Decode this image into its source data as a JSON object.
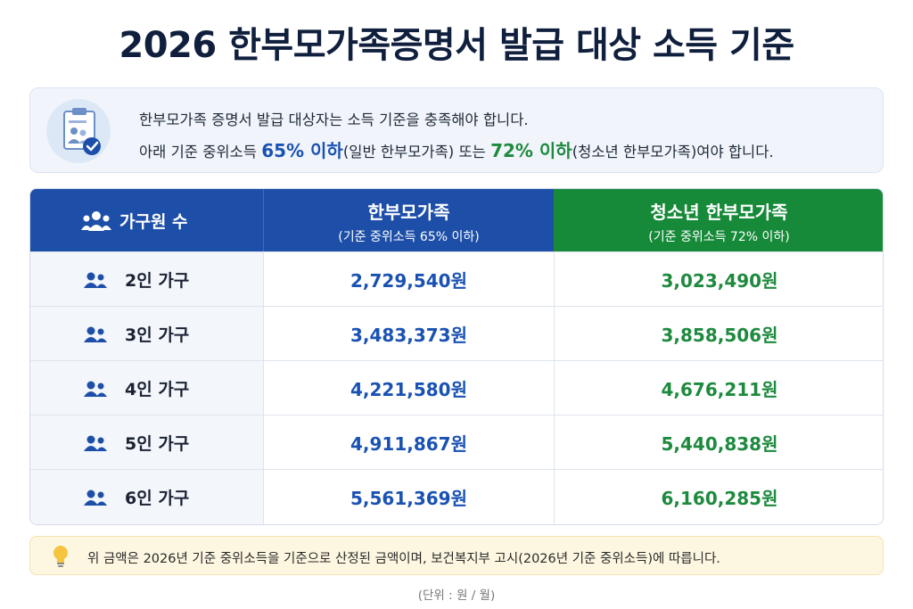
{
  "title": "2026 한부모가족증명서 발급 대상 소득 기준",
  "info": {
    "icon": "clipboard-family-check-icon",
    "line1": "한부모가족 증명서 발급 대상자는 소득 기준을 충족해야 합니다.",
    "line2_a": "아래 기준 중위소득 ",
    "line2_hl1": "65% 이하",
    "line2_b": "(일반 한부모가족) 또는 ",
    "line2_hl2": "72% 이하",
    "line2_c": "(청소년 한부모가족)여야 합니다."
  },
  "table": {
    "headers": {
      "household": "가구원 수",
      "general": "한부모가족",
      "general_sub": "(기준 중위소득 65% 이하)",
      "youth": "청소년 한부모가족",
      "youth_sub": "(기준 중위소득 72% 이하)"
    },
    "rows": [
      {
        "household": "2인 가구",
        "general": "2,729,540원",
        "youth": "3,023,490원"
      },
      {
        "household": "3인 가구",
        "general": "3,483,373원",
        "youth": "3,858,506원"
      },
      {
        "household": "4인 가구",
        "general": "4,221,580원",
        "youth": "4,676,211원"
      },
      {
        "household": "5인 가구",
        "general": "4,911,867원",
        "youth": "5,440,838원"
      },
      {
        "household": "6인 가구",
        "general": "5,561,369원",
        "youth": "6,160,285원"
      }
    ]
  },
  "note": {
    "icon": "lightbulb-icon",
    "text": "위 금액은 2026년 기준 중위소득을 기준으로 산정된 금액이며, 보건복지부 고시(2026년 기준 중위소득)에 따릅니다."
  },
  "unit": "(단위 : 원 / 월)",
  "colors": {
    "blue": "#1e4fa8",
    "green": "#178a3a",
    "title": "#0f1f3d"
  }
}
